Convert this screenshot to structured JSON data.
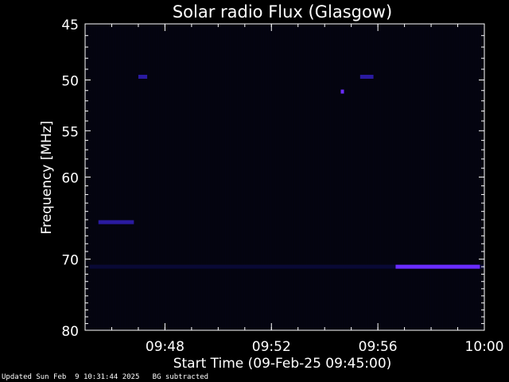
{
  "chart_data": {
    "type": "heatmap",
    "title": "Solar radio Flux (Glasgow)",
    "xlabel": "Start Time (09-Feb-25 09:45:00)",
    "ylabel": "Frequency [MHz]",
    "x_range": [
      "09:45:00",
      "10:00:00"
    ],
    "y_range": [
      45,
      80
    ],
    "y_scale": "log",
    "y_ticks": [
      45,
      50,
      55,
      60,
      70,
      80
    ],
    "x_ticks": [
      "09:48",
      "09:52",
      "09:56",
      "10:00"
    ],
    "grid": false,
    "colors": {
      "background": "#000000",
      "low": "#0a0a3a",
      "mid": "#2a1aa0",
      "high": "#6a2cff",
      "peak": "#ff5a3c"
    },
    "features": [
      {
        "kind": "narrowband",
        "freq_mhz": 71,
        "from": "09:45:10",
        "to": "10:00:00",
        "intensity": "low"
      },
      {
        "kind": "narrowband",
        "freq_mhz": 71,
        "from": "09:56:40",
        "to": "09:59:50",
        "intensity": "high"
      },
      {
        "kind": "narrowband",
        "freq_mhz": 65.3,
        "from": "09:45:30",
        "to": "09:46:50",
        "intensity": "mid"
      },
      {
        "kind": "narrowband",
        "freq_mhz": 49.7,
        "from": "09:47:00",
        "to": "09:47:20",
        "intensity": "mid"
      },
      {
        "kind": "narrowband",
        "freq_mhz": 49.7,
        "from": "09:55:20",
        "to": "09:55:50",
        "intensity": "mid"
      },
      {
        "kind": "spot",
        "freq_mhz": 51.1,
        "at": "09:54:40",
        "intensity": "high"
      }
    ]
  },
  "footer": {
    "updated": "Updated Sun Feb  9 10:31:44 2025",
    "note": "BG subtracted"
  }
}
